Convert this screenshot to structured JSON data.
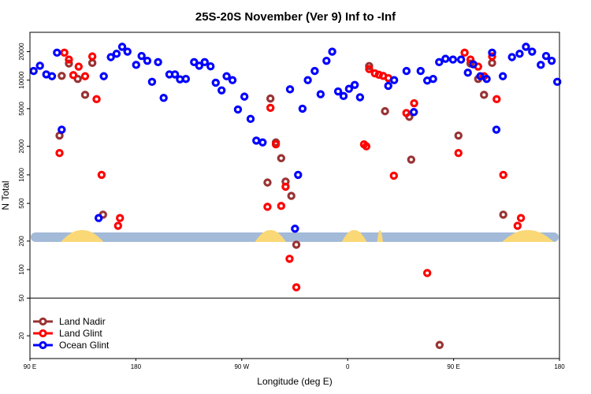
{
  "chart_data": {
    "type": "scatter",
    "title": "25S-20S November (Ver 9)   Inf to -Inf",
    "xlabel": "Longitude (deg E)",
    "ylabel": "N Total",
    "y_scale": "log",
    "xlim": [
      90,
      450
    ],
    "ylim": [
      11.5,
      32000
    ],
    "x_ticks": [
      {
        "value": 90,
        "label": "90 E"
      },
      {
        "value": 162,
        "label": "180"
      },
      {
        "value": 234,
        "label": "90 W"
      },
      {
        "value": 306,
        "label": "0"
      },
      {
        "value": 378,
        "label": "90 E"
      },
      {
        "value": 450,
        "label": "180"
      }
    ],
    "y_ticks": [
      {
        "value": 20,
        "label": "20"
      },
      {
        "value": 50,
        "label": "50"
      },
      {
        "value": 100,
        "label": "100"
      },
      {
        "value": 200,
        "label": "200"
      },
      {
        "value": 500,
        "label": "500"
      },
      {
        "value": 1000,
        "label": "1000"
      },
      {
        "value": 2000,
        "label": "2000"
      },
      {
        "value": 5000,
        "label": "5000"
      },
      {
        "value": 10000,
        "label": "10000"
      },
      {
        "value": 20000,
        "label": "20000"
      }
    ],
    "reference_line": 50,
    "land_mask": {
      "y_value": 220,
      "ocean_color": "#a3bad8",
      "land_color": "#fad876",
      "land_segments": [
        [
          111,
          140
        ],
        [
          243,
          264
        ],
        [
          302,
          319
        ],
        [
          326,
          330
        ],
        [
          411,
          446
        ]
      ]
    },
    "legend_position": "bottom-left",
    "series": [
      {
        "name": "Land Nadir",
        "color": "#993333",
        "points": [
          [
            110.1,
            2600
          ],
          [
            111.6,
            11100
          ],
          [
            116.5,
            15000
          ],
          [
            122.5,
            10300
          ],
          [
            127.5,
            7000
          ],
          [
            132.4,
            15200
          ],
          [
            139.7,
            380
          ],
          [
            251.5,
            830
          ],
          [
            253.5,
            6400
          ],
          [
            257.2,
            2200
          ],
          [
            260.8,
            1500
          ],
          [
            263.8,
            850
          ],
          [
            267.7,
            600
          ],
          [
            271.1,
            183
          ],
          [
            320.6,
            14100
          ],
          [
            331.4,
            4700
          ],
          [
            347.9,
            4100
          ],
          [
            349.2,
            1450
          ],
          [
            368.5,
            16
          ],
          [
            381.3,
            2600
          ],
          [
            389.5,
            15000
          ],
          [
            394.7,
            10300
          ],
          [
            398.7,
            7000
          ],
          [
            404.2,
            15200
          ],
          [
            411.8,
            380
          ]
        ]
      },
      {
        "name": "Land Glint",
        "color": "#ff0000",
        "points": [
          [
            110.1,
            1700
          ],
          [
            113.4,
            19500
          ],
          [
            116.5,
            16500
          ],
          [
            119.5,
            11300
          ],
          [
            123.1,
            13900
          ],
          [
            127.5,
            11000
          ],
          [
            132.4,
            17800
          ],
          [
            135.3,
            6300
          ],
          [
            138.7,
            1000
          ],
          [
            149.9,
            290
          ],
          [
            151.2,
            350
          ],
          [
            251.5,
            460
          ],
          [
            253.5,
            5100
          ],
          [
            257.2,
            2100
          ],
          [
            260.8,
            470
          ],
          [
            263.8,
            750
          ],
          [
            266.5,
            130
          ],
          [
            271.1,
            65
          ],
          [
            317.1,
            2100
          ],
          [
            318.7,
            2000
          ],
          [
            320.6,
            13100
          ],
          [
            324.5,
            11800
          ],
          [
            327.2,
            11400
          ],
          [
            330.1,
            11100
          ],
          [
            333.7,
            10500
          ],
          [
            337.4,
            980
          ],
          [
            345.9,
            4500
          ],
          [
            351.2,
            5700
          ],
          [
            360.1,
            92
          ],
          [
            381.3,
            1700
          ],
          [
            385.5,
            19500
          ],
          [
            389.5,
            16500
          ],
          [
            394.7,
            13900
          ],
          [
            398.7,
            11000
          ],
          [
            404.2,
            17800
          ],
          [
            407.3,
            6300
          ],
          [
            411.8,
            1000
          ],
          [
            421.5,
            290
          ],
          [
            423.8,
            350
          ]
        ]
      },
      {
        "name": "Ocean Glint",
        "color": "#0000ff",
        "points": [
          [
            92.5,
            12500
          ],
          [
            96.8,
            14200
          ],
          [
            101.1,
            11500
          ],
          [
            105.0,
            11000
          ],
          [
            108.4,
            19500
          ],
          [
            111.6,
            3000
          ],
          [
            136.7,
            350
          ],
          [
            140.2,
            11000
          ],
          [
            145.0,
            17500
          ],
          [
            148.9,
            19000
          ],
          [
            152.7,
            22500
          ],
          [
            156.3,
            20000
          ],
          [
            162.2,
            14500
          ],
          [
            165.9,
            18000
          ],
          [
            169.8,
            16000
          ],
          [
            173.0,
            9600
          ],
          [
            177.1,
            15500
          ],
          [
            180.9,
            6500
          ],
          [
            184.8,
            11500
          ],
          [
            188.6,
            11500
          ],
          [
            192.0,
            10200
          ],
          [
            196.0,
            10300
          ],
          [
            201.6,
            15500
          ],
          [
            205.1,
            14200
          ],
          [
            208.8,
            15500
          ],
          [
            212.8,
            14000
          ],
          [
            216.3,
            9400
          ],
          [
            220.3,
            7800
          ],
          [
            223.7,
            11000
          ],
          [
            227.7,
            10000
          ],
          [
            231.4,
            4900
          ],
          [
            235.8,
            6700
          ],
          [
            240.0,
            3900
          ],
          [
            243.9,
            2300
          ],
          [
            248.2,
            2200
          ],
          [
            266.8,
            8000
          ],
          [
            270.2,
            270
          ],
          [
            272.3,
            1000
          ],
          [
            275.3,
            5000
          ],
          [
            278.9,
            10000
          ],
          [
            283.6,
            12500
          ],
          [
            287.6,
            7100
          ],
          [
            291.6,
            16000
          ],
          [
            295.5,
            20000
          ],
          [
            299.5,
            7600
          ],
          [
            303.2,
            6800
          ],
          [
            306.9,
            8100
          ],
          [
            310.8,
            8900
          ],
          [
            314.4,
            6600
          ],
          [
            333.6,
            8700
          ],
          [
            337.6,
            10000
          ],
          [
            346.0,
            12500
          ],
          [
            351.0,
            4600
          ],
          [
            355.6,
            12500
          ],
          [
            360.1,
            9900
          ],
          [
            364.1,
            10300
          ],
          [
            368.2,
            15500
          ],
          [
            372.5,
            16800
          ],
          [
            377.6,
            16500
          ],
          [
            383.1,
            16500
          ],
          [
            387.7,
            12000
          ],
          [
            391.4,
            14700
          ],
          [
            396.2,
            11000
          ],
          [
            400.5,
            10300
          ],
          [
            404.2,
            19500
          ],
          [
            407.1,
            3000
          ],
          [
            411.5,
            11000
          ],
          [
            417.7,
            17500
          ],
          [
            422.9,
            19000
          ],
          [
            427.2,
            22500
          ],
          [
            431.4,
            20000
          ],
          [
            437.3,
            14500
          ],
          [
            440.9,
            18000
          ],
          [
            444.7,
            16000
          ],
          [
            448.5,
            9600
          ]
        ]
      }
    ]
  }
}
